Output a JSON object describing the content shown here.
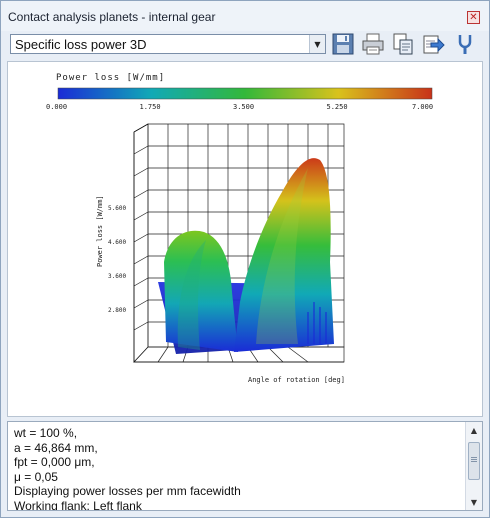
{
  "window": {
    "title": "Contact analysis planets - internal gear"
  },
  "toolbar": {
    "view_select": "Specific loss power 3D",
    "icons": [
      "save-icon",
      "print-icon",
      "copy-icon",
      "export-icon",
      "help-icon"
    ]
  },
  "chart_data": {
    "type": "surface3d",
    "colorbar": {
      "label": "Power loss [W/mm]",
      "ticks": [
        "0.000",
        "1.750",
        "3.500",
        "5.250",
        "7.000"
      ],
      "colors": [
        "#1a2bd6",
        "#11a9b6",
        "#33b83a",
        "#d9c21c",
        "#c8321a"
      ]
    },
    "z_axis_label": "Power loss [W/mm]",
    "x_axis_label": "Angle of rotation [deg]",
    "z_ticks": [
      "5.600",
      "4.600",
      "3.600",
      "2.800"
    ],
    "max_value": 7.0
  },
  "info": {
    "lines": [
      "wt = 100 %,",
      "a = 46,864 mm,",
      "fpt = 0,000 μm,",
      "μ = 0,05",
      "Displaying power losses per mm facewidth",
      "Working flank: Left flank"
    ]
  }
}
